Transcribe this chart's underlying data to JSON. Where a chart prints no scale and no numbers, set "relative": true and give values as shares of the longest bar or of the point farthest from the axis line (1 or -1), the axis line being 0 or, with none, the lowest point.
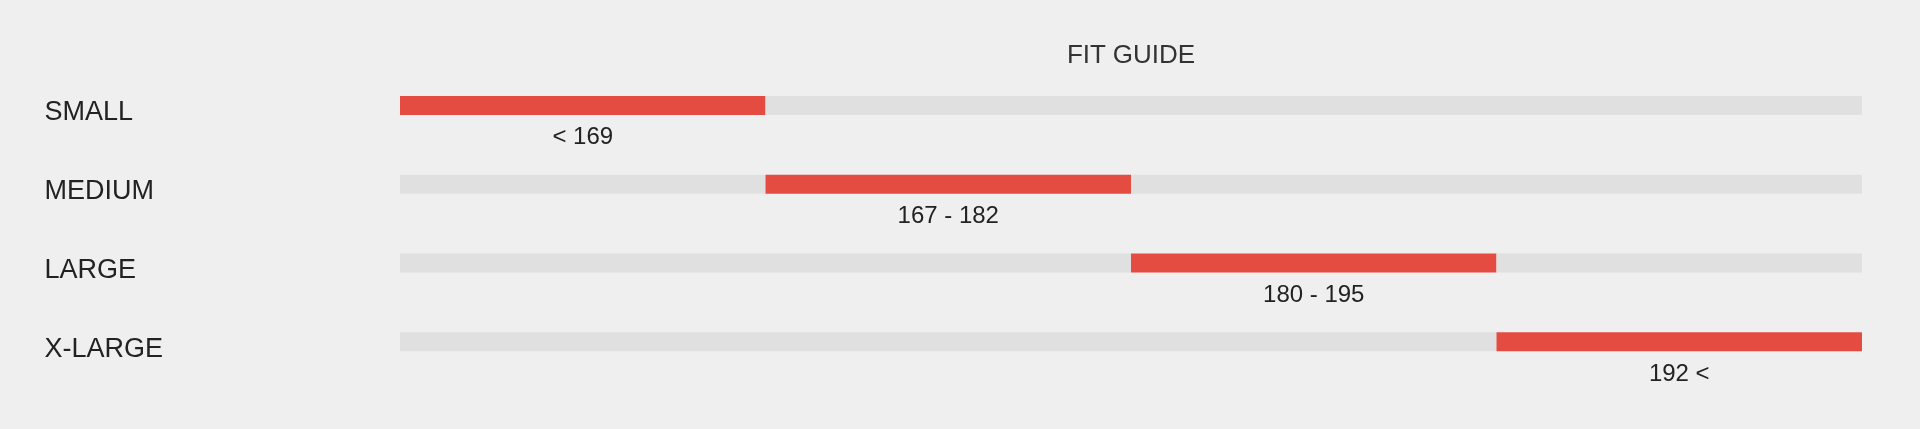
{
  "chart_data": {
    "type": "bar",
    "orientation": "horizontal",
    "stacked": true,
    "relative": true,
    "title": "FIT GUIDE",
    "categories": [
      "SMALL",
      "MEDIUM",
      "LARGE",
      "X-LARGE"
    ],
    "series": [
      {
        "color": "#e0e0e0",
        "values": [
          null,
          0.25,
          0.5,
          0.75
        ]
      },
      {
        "color": "#e54c41",
        "values": [
          0.25,
          0.25,
          0.25,
          0.25
        ]
      },
      {
        "color": "#e0e0e0",
        "values": [
          0.75,
          0.5,
          0.25,
          null
        ]
      }
    ],
    "annotations": [
      {
        "text": "< 169",
        "x": 0.125,
        "y": "SMALL"
      },
      {
        "text": "167 - 182",
        "x": 0.375,
        "y": "MEDIUM"
      },
      {
        "text": "180 - 195",
        "x": 0.625,
        "y": "LARGE"
      },
      {
        "text": "192 <",
        "x": 0.875,
        "y": "X-LARGE"
      }
    ]
  }
}
